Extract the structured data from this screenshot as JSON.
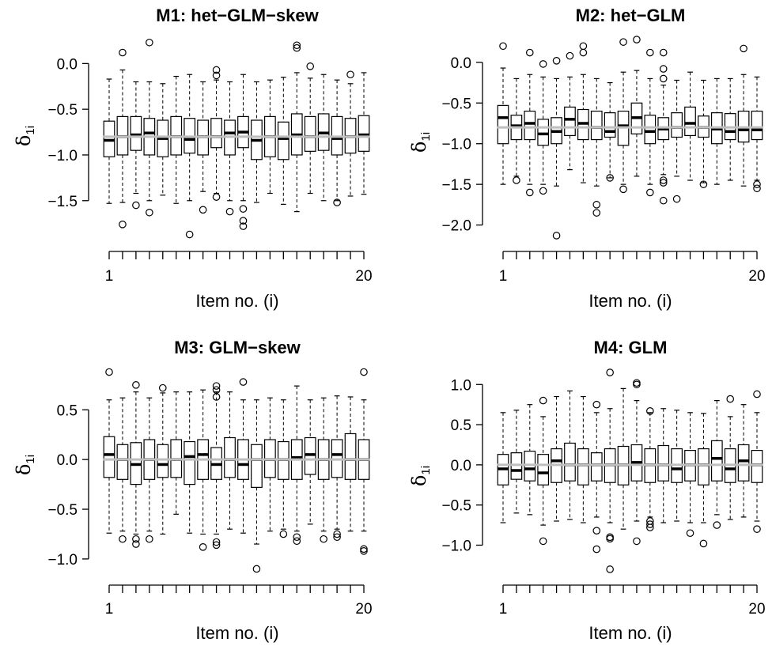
{
  "figure": {
    "background": "#ffffff",
    "ref_line_color": "#bebebe"
  },
  "chart_data": [
    {
      "type": "boxplot",
      "title": "M1: het−GLM−skew",
      "xlabel": "Item no. (i)",
      "ylabel_main": "δ",
      "ylabel_sub": "1i",
      "x_tick_labels": [
        {
          "x": 1,
          "label": "1"
        },
        {
          "x": 20,
          "label": "20"
        }
      ],
      "yticks": [
        {
          "v": 0.0,
          "label": "0.0"
        },
        {
          "v": -0.5,
          "label": "−0.5"
        },
        {
          "v": -1.0,
          "label": "−1.0"
        },
        {
          "v": -1.5,
          "label": "−1.5"
        }
      ],
      "ylim": [
        -1.9,
        0.28
      ],
      "ref_line": -0.8,
      "boxes": [
        {
          "q1": -1.02,
          "median": -0.84,
          "q3": -0.63,
          "wlo": -1.53,
          "whi": -0.17,
          "outliers": []
        },
        {
          "q1": -1.0,
          "median": -0.8,
          "q3": -0.58,
          "wlo": -1.52,
          "whi": -0.07,
          "outliers": [
            0.12,
            -1.76
          ]
        },
        {
          "q1": -0.95,
          "median": -0.78,
          "q3": -0.58,
          "wlo": -1.42,
          "whi": -0.2,
          "outliers": [
            -1.55
          ]
        },
        {
          "q1": -1.0,
          "median": -0.76,
          "q3": -0.6,
          "wlo": -1.5,
          "whi": -0.2,
          "outliers": [
            0.23,
            -1.63
          ]
        },
        {
          "q1": -1.02,
          "median": -0.82,
          "q3": -0.62,
          "wlo": -1.44,
          "whi": -0.22,
          "outliers": []
        },
        {
          "q1": -1.0,
          "median": -0.8,
          "q3": -0.58,
          "wlo": -1.53,
          "whi": -0.14,
          "outliers": []
        },
        {
          "q1": -0.98,
          "median": -0.83,
          "q3": -0.6,
          "wlo": -1.5,
          "whi": -0.12,
          "outliers": [
            -1.87
          ]
        },
        {
          "q1": -1.0,
          "median": -0.8,
          "q3": -0.62,
          "wlo": -1.4,
          "whi": -0.2,
          "outliers": [
            -1.6
          ]
        },
        {
          "q1": -0.92,
          "median": -0.8,
          "q3": -0.6,
          "wlo": -1.42,
          "whi": -0.18,
          "outliers": [
            -0.07,
            -0.13,
            -1.46
          ]
        },
        {
          "q1": -1.0,
          "median": -0.76,
          "q3": -0.62,
          "wlo": -1.5,
          "whi": -0.2,
          "outliers": [
            -1.62
          ]
        },
        {
          "q1": -0.92,
          "median": -0.75,
          "q3": -0.58,
          "wlo": -1.5,
          "whi": -0.12,
          "outliers": [
            -1.59,
            -1.72,
            -1.78
          ]
        },
        {
          "q1": -1.05,
          "median": -0.84,
          "q3": -0.62,
          "wlo": -1.52,
          "whi": -0.2,
          "outliers": []
        },
        {
          "q1": -1.02,
          "median": -0.8,
          "q3": -0.58,
          "wlo": -1.42,
          "whi": -0.18,
          "outliers": []
        },
        {
          "q1": -1.05,
          "median": -0.82,
          "q3": -0.64,
          "wlo": -1.54,
          "whi": -0.15,
          "outliers": []
        },
        {
          "q1": -1.0,
          "median": -0.78,
          "q3": -0.55,
          "wlo": -1.62,
          "whi": -0.1,
          "outliers": [
            0.17,
            0.2
          ]
        },
        {
          "q1": -0.96,
          "median": -0.8,
          "q3": -0.58,
          "wlo": -1.42,
          "whi": -0.16,
          "outliers": [
            -0.03
          ]
        },
        {
          "q1": -0.95,
          "median": -0.76,
          "q3": -0.55,
          "wlo": -1.5,
          "whi": -0.12,
          "outliers": []
        },
        {
          "q1": -1.0,
          "median": -0.82,
          "q3": -0.58,
          "wlo": -1.5,
          "whi": -0.18,
          "outliers": [
            -1.52
          ]
        },
        {
          "q1": -0.98,
          "median": -0.8,
          "q3": -0.6,
          "wlo": -1.45,
          "whi": -0.22,
          "outliers": [
            -0.12
          ]
        },
        {
          "q1": -0.96,
          "median": -0.78,
          "q3": -0.57,
          "wlo": -1.43,
          "whi": -0.1,
          "outliers": []
        }
      ]
    },
    {
      "type": "boxplot",
      "title": "M2: het−GLM",
      "xlabel": "Item no. (i)",
      "ylabel_main": "δ",
      "ylabel_sub": "1i",
      "x_tick_labels": [
        {
          "x": 1,
          "label": "1"
        },
        {
          "x": 20,
          "label": "20"
        }
      ],
      "yticks": [
        {
          "v": 0.0,
          "label": "0.0"
        },
        {
          "v": -0.5,
          "label": "−0.5"
        },
        {
          "v": -1.0,
          "label": "−1.0"
        },
        {
          "v": -1.5,
          "label": "−1.5"
        },
        {
          "v": -2.0,
          "label": "−2.0"
        }
      ],
      "ylim": [
        -2.15,
        0.3
      ],
      "ref_line": -0.8,
      "boxes": [
        {
          "q1": -1.0,
          "median": -0.68,
          "q3": -0.53,
          "wlo": -1.5,
          "whi": -0.07,
          "outliers": [
            0.2
          ]
        },
        {
          "q1": -0.95,
          "median": -0.78,
          "q3": -0.65,
          "wlo": -1.4,
          "whi": -0.2,
          "outliers": [
            -1.45
          ]
        },
        {
          "q1": -0.95,
          "median": -0.75,
          "q3": -0.6,
          "wlo": -1.5,
          "whi": -0.15,
          "outliers": [
            0.12,
            -1.6
          ]
        },
        {
          "q1": -1.02,
          "median": -0.88,
          "q3": -0.7,
          "wlo": -1.5,
          "whi": -0.18,
          "outliers": [
            -0.02,
            -1.58
          ]
        },
        {
          "q1": -1.0,
          "median": -0.85,
          "q3": -0.68,
          "wlo": -1.52,
          "whi": -0.2,
          "outliers": [
            0.02,
            -2.13
          ]
        },
        {
          "q1": -0.9,
          "median": -0.7,
          "q3": -0.55,
          "wlo": -1.32,
          "whi": -0.18,
          "outliers": [
            0.08
          ]
        },
        {
          "q1": -0.95,
          "median": -0.75,
          "q3": -0.58,
          "wlo": -1.48,
          "whi": -0.15,
          "outliers": [
            0.12,
            0.2
          ]
        },
        {
          "q1": -0.95,
          "median": -0.8,
          "q3": -0.6,
          "wlo": -1.52,
          "whi": -0.2,
          "outliers": [
            -1.75,
            -1.85
          ]
        },
        {
          "q1": -0.92,
          "median": -0.85,
          "q3": -0.62,
          "wlo": -1.42,
          "whi": -0.25,
          "outliers": [
            -1.42
          ]
        },
        {
          "q1": -1.02,
          "median": -0.78,
          "q3": -0.6,
          "wlo": -1.5,
          "whi": -0.12,
          "outliers": [
            0.25,
            -1.56
          ]
        },
        {
          "q1": -0.88,
          "median": -0.68,
          "q3": -0.5,
          "wlo": -1.4,
          "whi": -0.1,
          "outliers": [
            0.28
          ]
        },
        {
          "q1": -1.0,
          "median": -0.85,
          "q3": -0.65,
          "wlo": -1.5,
          "whi": -0.2,
          "outliers": [
            0.12,
            -1.6
          ]
        },
        {
          "q1": -0.95,
          "median": -0.82,
          "q3": -0.68,
          "wlo": -1.38,
          "whi": -0.28,
          "outliers": [
            0.12,
            -0.08,
            -0.2,
            -1.45,
            -1.48,
            -1.7
          ]
        },
        {
          "q1": -0.92,
          "median": -0.8,
          "q3": -0.62,
          "wlo": -1.4,
          "whi": -0.22,
          "outliers": [
            -1.68
          ]
        },
        {
          "q1": -0.9,
          "median": -0.75,
          "q3": -0.55,
          "wlo": -1.45,
          "whi": -0.12,
          "outliers": []
        },
        {
          "q1": -0.92,
          "median": -0.8,
          "q3": -0.66,
          "wlo": -1.48,
          "whi": -0.22,
          "outliers": [
            -1.5
          ]
        },
        {
          "q1": -1.0,
          "median": -0.82,
          "q3": -0.62,
          "wlo": -1.5,
          "whi": -0.2,
          "outliers": []
        },
        {
          "q1": -0.95,
          "median": -0.85,
          "q3": -0.63,
          "wlo": -1.45,
          "whi": -0.2,
          "outliers": []
        },
        {
          "q1": -0.98,
          "median": -0.83,
          "q3": -0.6,
          "wlo": -1.52,
          "whi": -0.15,
          "outliers": [
            0.17
          ]
        },
        {
          "q1": -0.95,
          "median": -0.83,
          "q3": -0.6,
          "wlo": -1.45,
          "whi": -0.18,
          "outliers": [
            -1.5,
            -1.55
          ]
        }
      ]
    },
    {
      "type": "boxplot",
      "title": "M3: GLM−skew",
      "xlabel": "Item no. (i)",
      "ylabel_main": "δ",
      "ylabel_sub": "1i",
      "x_tick_labels": [
        {
          "x": 1,
          "label": "1"
        },
        {
          "x": 20,
          "label": "20"
        }
      ],
      "yticks": [
        {
          "v": 0.5,
          "label": "0.5"
        },
        {
          "v": 0.0,
          "label": "0.0"
        },
        {
          "v": -0.5,
          "label": "−0.5"
        },
        {
          "v": -1.0,
          "label": "−1.0"
        }
      ],
      "ylim": [
        -1.12,
        0.9
      ],
      "ref_line": 0.0,
      "boxes": [
        {
          "q1": -0.18,
          "median": 0.05,
          "q3": 0.23,
          "wlo": -0.74,
          "whi": 0.6,
          "outliers": [
            0.88
          ]
        },
        {
          "q1": -0.2,
          "median": 0.0,
          "q3": 0.15,
          "wlo": -0.72,
          "whi": 0.62,
          "outliers": [
            -0.8
          ]
        },
        {
          "q1": -0.25,
          "median": -0.05,
          "q3": 0.17,
          "wlo": -0.75,
          "whi": 0.68,
          "outliers": [
            0.75,
            -0.8,
            -0.85
          ]
        },
        {
          "q1": -0.2,
          "median": 0.0,
          "q3": 0.2,
          "wlo": -0.72,
          "whi": 0.62,
          "outliers": [
            -0.8
          ]
        },
        {
          "q1": -0.18,
          "median": -0.05,
          "q3": 0.15,
          "wlo": -0.75,
          "whi": 0.67,
          "outliers": [
            0.72
          ]
        },
        {
          "q1": -0.18,
          "median": 0.0,
          "q3": 0.2,
          "wlo": -0.55,
          "whi": 0.68,
          "outliers": []
        },
        {
          "q1": -0.25,
          "median": 0.03,
          "q3": 0.18,
          "wlo": -0.74,
          "whi": 0.68,
          "outliers": []
        },
        {
          "q1": -0.2,
          "median": 0.05,
          "q3": 0.2,
          "wlo": -0.75,
          "whi": 0.7,
          "outliers": [
            -0.88
          ]
        },
        {
          "q1": -0.2,
          "median": -0.05,
          "q3": 0.12,
          "wlo": -0.75,
          "whi": 0.68,
          "outliers": [
            0.74,
            0.7,
            0.63,
            -0.83,
            -0.86
          ]
        },
        {
          "q1": -0.18,
          "median": 0.0,
          "q3": 0.22,
          "wlo": -0.7,
          "whi": 0.68,
          "outliers": []
        },
        {
          "q1": -0.2,
          "median": -0.05,
          "q3": 0.2,
          "wlo": -0.74,
          "whi": 0.6,
          "outliers": [
            0.78
          ]
        },
        {
          "q1": -0.28,
          "median": 0.0,
          "q3": 0.15,
          "wlo": -0.85,
          "whi": 0.6,
          "outliers": [
            -1.1
          ]
        },
        {
          "q1": -0.18,
          "median": 0.0,
          "q3": 0.2,
          "wlo": -0.72,
          "whi": 0.62,
          "outliers": []
        },
        {
          "q1": -0.2,
          "median": 0.0,
          "q3": 0.18,
          "wlo": -0.7,
          "whi": 0.6,
          "outliers": [
            -0.75
          ]
        },
        {
          "q1": -0.2,
          "median": 0.02,
          "q3": 0.2,
          "wlo": -0.72,
          "whi": 0.74,
          "outliers": [
            -0.78,
            -0.82
          ]
        },
        {
          "q1": -0.15,
          "median": 0.05,
          "q3": 0.22,
          "wlo": -0.65,
          "whi": 0.6,
          "outliers": []
        },
        {
          "q1": -0.2,
          "median": 0.0,
          "q3": 0.2,
          "wlo": -0.72,
          "whi": 0.62,
          "outliers": [
            -0.8
          ]
        },
        {
          "q1": -0.18,
          "median": 0.05,
          "q3": 0.2,
          "wlo": -0.7,
          "whi": 0.64,
          "outliers": [
            -0.75,
            -0.78
          ]
        },
        {
          "q1": -0.2,
          "median": 0.0,
          "q3": 0.26,
          "wlo": -0.72,
          "whi": 0.63,
          "outliers": []
        },
        {
          "q1": -0.2,
          "median": 0.0,
          "q3": 0.2,
          "wlo": -0.72,
          "whi": 0.6,
          "outliers": [
            0.88,
            -0.9,
            -0.92
          ]
        }
      ]
    },
    {
      "type": "boxplot",
      "title": "M4: GLM",
      "xlabel": "Item no. (i)",
      "ylabel_main": "δ",
      "ylabel_sub": "1i",
      "x_tick_labels": [
        {
          "x": 1,
          "label": "1"
        },
        {
          "x": 20,
          "label": "20"
        }
      ],
      "yticks": [
        {
          "v": 1.0,
          "label": "1.0"
        },
        {
          "v": 0.5,
          "label": "0.5"
        },
        {
          "v": 0.0,
          "label": "0.0"
        },
        {
          "v": -0.5,
          "label": "−0.5"
        },
        {
          "v": -1.0,
          "label": "−1.0"
        }
      ],
      "ylim": [
        -1.32,
        1.18
      ],
      "ref_line": 0.0,
      "boxes": [
        {
          "q1": -0.25,
          "median": -0.05,
          "q3": 0.13,
          "wlo": -0.72,
          "whi": 0.65,
          "outliers": []
        },
        {
          "q1": -0.18,
          "median": -0.07,
          "q3": 0.15,
          "wlo": -0.6,
          "whi": 0.68,
          "outliers": []
        },
        {
          "q1": -0.2,
          "median": -0.05,
          "q3": 0.17,
          "wlo": -0.62,
          "whi": 0.75,
          "outliers": []
        },
        {
          "q1": -0.25,
          "median": -0.1,
          "q3": 0.13,
          "wlo": -0.75,
          "whi": 0.6,
          "outliers": [
            0.8,
            -0.95
          ]
        },
        {
          "q1": -0.22,
          "median": 0.05,
          "q3": 0.2,
          "wlo": -0.7,
          "whi": 0.85,
          "outliers": []
        },
        {
          "q1": -0.2,
          "median": 0.0,
          "q3": 0.27,
          "wlo": -0.68,
          "whi": 0.92,
          "outliers": []
        },
        {
          "q1": -0.25,
          "median": 0.0,
          "q3": 0.2,
          "wlo": -0.72,
          "whi": 0.85,
          "outliers": []
        },
        {
          "q1": -0.2,
          "median": 0.0,
          "q3": 0.15,
          "wlo": -0.65,
          "whi": 0.65,
          "outliers": [
            0.75,
            -0.82,
            -1.05
          ]
        },
        {
          "q1": -0.22,
          "median": 0.0,
          "q3": 0.2,
          "wlo": -0.72,
          "whi": 0.7,
          "outliers": [
            1.15,
            -0.9,
            -0.92,
            -1.3
          ]
        },
        {
          "q1": -0.25,
          "median": 0.0,
          "q3": 0.23,
          "wlo": -0.8,
          "whi": 0.95,
          "outliers": []
        },
        {
          "q1": -0.2,
          "median": 0.03,
          "q3": 0.25,
          "wlo": -0.7,
          "whi": 0.8,
          "outliers": [
            1.02,
            1.0,
            -0.95
          ]
        },
        {
          "q1": -0.22,
          "median": 0.0,
          "q3": 0.2,
          "wlo": -0.65,
          "whi": 0.65,
          "outliers": [
            0.67,
            -0.7,
            -0.74,
            -0.78
          ]
        },
        {
          "q1": -0.2,
          "median": 0.0,
          "q3": 0.24,
          "wlo": -0.72,
          "whi": 0.7,
          "outliers": []
        },
        {
          "q1": -0.22,
          "median": -0.05,
          "q3": 0.2,
          "wlo": -0.7,
          "whi": 0.68,
          "outliers": []
        },
        {
          "q1": -0.2,
          "median": 0.0,
          "q3": 0.18,
          "wlo": -0.72,
          "whi": 0.65,
          "outliers": [
            -0.85
          ]
        },
        {
          "q1": -0.25,
          "median": 0.0,
          "q3": 0.2,
          "wlo": -0.72,
          "whi": 0.64,
          "outliers": [
            -0.98
          ]
        },
        {
          "q1": -0.2,
          "median": 0.08,
          "q3": 0.3,
          "wlo": -0.62,
          "whi": 0.8,
          "outliers": [
            -0.75
          ]
        },
        {
          "q1": -0.22,
          "median": -0.05,
          "q3": 0.2,
          "wlo": -0.68,
          "whi": 0.6,
          "outliers": [
            0.82
          ]
        },
        {
          "q1": -0.2,
          "median": 0.05,
          "q3": 0.25,
          "wlo": -0.65,
          "whi": 0.75,
          "outliers": []
        },
        {
          "q1": -0.22,
          "median": 0.0,
          "q3": 0.18,
          "wlo": -0.7,
          "whi": 0.65,
          "outliers": [
            0.88,
            -0.8
          ]
        }
      ]
    }
  ]
}
